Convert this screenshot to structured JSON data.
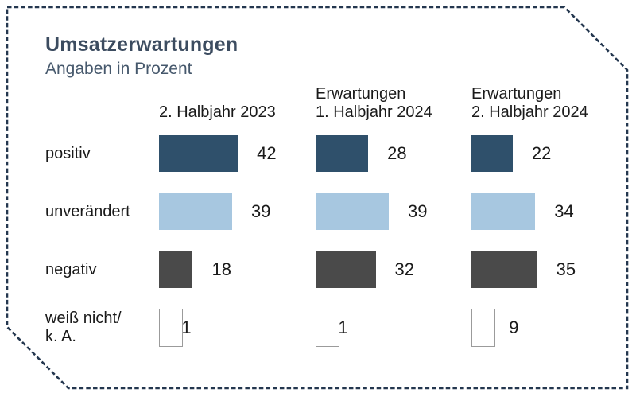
{
  "title": "Umsatzerwartungen",
  "subtitle": "Angaben in Prozent",
  "colors": {
    "frame": "#24374f",
    "title_text": "#3c4c60",
    "subtitle_text": "#46586c",
    "body_text": "#1a1a1a",
    "positiv_bar": "#2f506b",
    "unveraendert_bar": "#a7c7e0",
    "negativ_bar": "#4a4a4a",
    "weiss_nicht_box_fill": "#ffffff",
    "weiss_nicht_box_border": "#9b9b9b"
  },
  "chart_data": {
    "type": "bar",
    "orientation": "horizontal",
    "unit": "percent",
    "title": "Umsatzerwartungen",
    "subtitle": "Angaben in Prozent",
    "value_axis_hidden": true,
    "value_range": [
      0,
      100
    ],
    "columns": [
      {
        "line1": "",
        "line2": "2. Halbjahr 2023"
      },
      {
        "line1": "Erwartungen",
        "line2": "1. Halbjahr 2024"
      },
      {
        "line1": "Erwartungen",
        "line2": "2. Halbjahr 2024"
      }
    ],
    "rows": [
      {
        "label": "positiv",
        "color": "#2f506b",
        "values": [
          42,
          28,
          22
        ]
      },
      {
        "label": "unverändert",
        "color": "#a7c7e0",
        "values": [
          39,
          39,
          34
        ]
      },
      {
        "label": "negativ",
        "color": "#4a4a4a",
        "values": [
          18,
          32,
          35
        ]
      },
      {
        "label": "weiß nicht/ k. A.",
        "label_lines": [
          "weiß nicht/",
          "k. A."
        ],
        "color": "#ffffff",
        "outline": "#9b9b9b",
        "values": [
          1,
          1,
          9
        ]
      }
    ]
  }
}
